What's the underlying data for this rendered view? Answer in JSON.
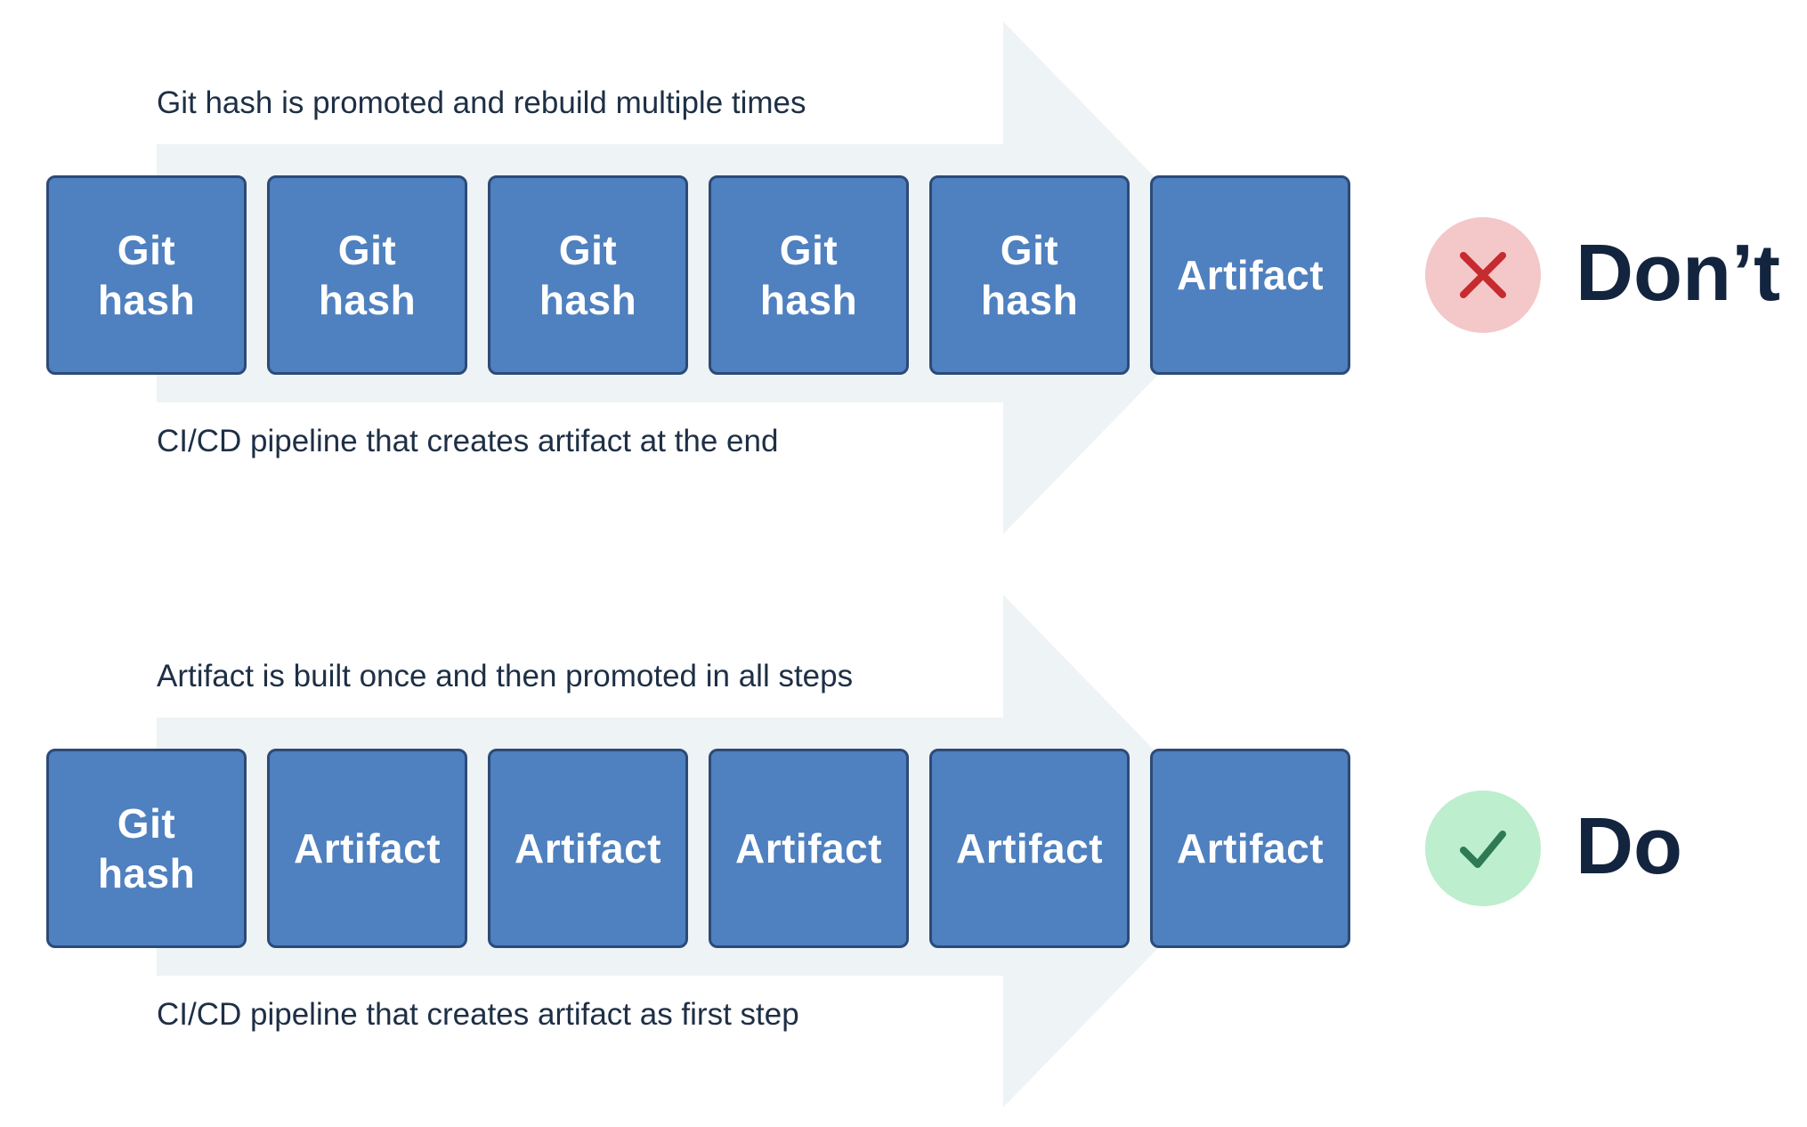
{
  "rows": [
    {
      "caption_top": "Git hash is promoted and rebuild multiple times",
      "caption_bottom": "CI/CD pipeline that creates artifact at the end",
      "boxes": [
        {
          "line1": "Git",
          "line2": "hash"
        },
        {
          "line1": "Git",
          "line2": "hash"
        },
        {
          "line1": "Git",
          "line2": "hash"
        },
        {
          "line1": "Git",
          "line2": "hash"
        },
        {
          "line1": "Git",
          "line2": "hash"
        },
        {
          "line1": "Artifact",
          "line2": ""
        }
      ],
      "status_icon": "close-icon",
      "status_color": "#c62b2f",
      "verdict": "Don’t"
    },
    {
      "caption_top": "Artifact is built once and then promoted in all steps",
      "caption_bottom": "CI/CD pipeline that creates artifact as first step",
      "boxes": [
        {
          "line1": "Git",
          "line2": "hash"
        },
        {
          "line1": "Artifact",
          "line2": ""
        },
        {
          "line1": "Artifact",
          "line2": ""
        },
        {
          "line1": "Artifact",
          "line2": ""
        },
        {
          "line1": "Artifact",
          "line2": ""
        },
        {
          "line1": "Artifact",
          "line2": ""
        }
      ],
      "status_icon": "check-icon",
      "status_color": "#2f7a55",
      "verdict": "Do"
    }
  ],
  "colors": {
    "box_fill": "#4f80bf",
    "box_border": "#2c4a78",
    "arrow_fill": "#eef3f5",
    "text_dark": "#1e2f45"
  }
}
